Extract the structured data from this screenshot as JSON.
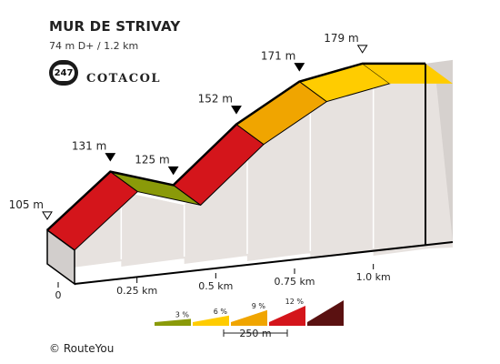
{
  "header": {
    "title": "MUR DE STRIVAY",
    "subtitle": "74 m D+ / 1.2 km",
    "badge_number": "247",
    "brand": "COTACOL"
  },
  "footer": {
    "credit": "© RouteYou"
  },
  "chart_data": {
    "type": "area",
    "points": [
      {
        "distance_km": 0,
        "elevation_m": 105,
        "label": "105 m",
        "marker": "open"
      },
      {
        "distance_km": 0.2,
        "elevation_m": 131,
        "label": "131 m",
        "marker": "filled"
      },
      {
        "distance_km": 0.4,
        "elevation_m": 125,
        "label": "125 m",
        "marker": "filled"
      },
      {
        "distance_km": 0.6,
        "elevation_m": 152,
        "label": "152 m",
        "marker": "filled"
      },
      {
        "distance_km": 0.8,
        "elevation_m": 171,
        "label": "171 m",
        "marker": "filled"
      },
      {
        "distance_km": 1.0,
        "elevation_m": 179,
        "label": "179 m",
        "marker": "open"
      },
      {
        "distance_km": 1.2,
        "elevation_m": null,
        "label": "",
        "marker": "none"
      }
    ],
    "segments": [
      {
        "from_km": 0,
        "to_km": 0.2,
        "color": "#d4151b"
      },
      {
        "from_km": 0.2,
        "to_km": 0.4,
        "color": "#8a9a09"
      },
      {
        "from_km": 0.4,
        "to_km": 0.6,
        "color": "#d4151b"
      },
      {
        "from_km": 0.6,
        "to_km": 0.8,
        "color": "#f0a500"
      },
      {
        "from_km": 0.8,
        "to_km": 1.0,
        "color": "#ffcc00"
      }
    ],
    "x_ticks": [
      {
        "km": 0,
        "label": "0"
      },
      {
        "km": 0.25,
        "label": "0.25 km"
      },
      {
        "km": 0.5,
        "label": "0.5 km"
      },
      {
        "km": 0.75,
        "label": "0.75 km"
      },
      {
        "km": 1.0,
        "label": "1.0 km"
      }
    ],
    "xlim": [
      0,
      1.2
    ],
    "ylim": [
      90,
      185
    ],
    "colors": {
      "side": "#e7e2df",
      "side_dark": "#d6d1ce",
      "base_front": "#d2cecc",
      "outline": "#000000"
    },
    "legend": {
      "items": [
        {
          "label": "3 %",
          "color": "#8a9a09",
          "height": 0.15
        },
        {
          "label": "6 %",
          "color": "#ffcc00",
          "height": 0.3
        },
        {
          "label": "9 %",
          "color": "#f0a500",
          "height": 0.55
        },
        {
          "label": "12 %",
          "color": "#d4151b",
          "height": 0.75
        },
        {
          "label": "",
          "color": "#5a1111",
          "height": 1.0
        }
      ],
      "scale_label": "250 m"
    }
  }
}
